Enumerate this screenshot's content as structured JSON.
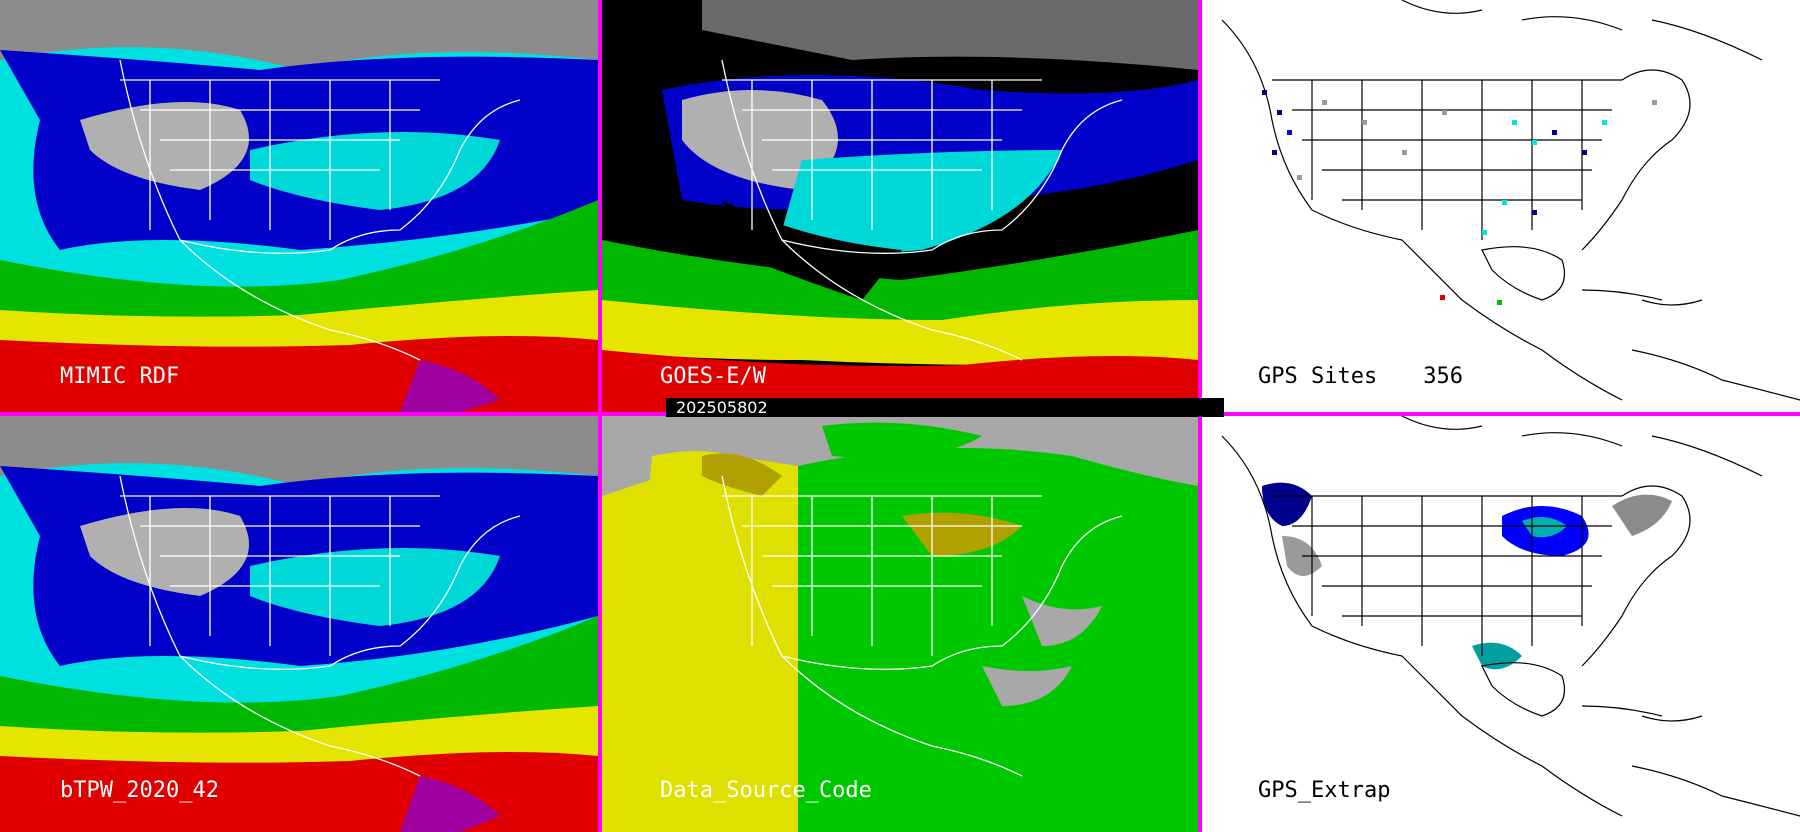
{
  "panels": {
    "mimic": {
      "label": "MIMIC RDF"
    },
    "goes": {
      "label": "GOES-E/W"
    },
    "gps_sites": {
      "label": "GPS Sites",
      "count": "356"
    },
    "btpw": {
      "label": "bTPW_2020_42"
    },
    "data_source": {
      "label": "Data_Source_Code"
    },
    "gps_extrap": {
      "label": "GPS_Extrap"
    }
  },
  "timestamp": "202505802",
  "colors": {
    "divider": "#ff00ff",
    "tpw_scale": [
      "#ffffff",
      "#9a9a9a",
      "#00008f",
      "#0000ff",
      "#00e5e5",
      "#00c000",
      "#e5e500",
      "#e50000",
      "#a000a0"
    ],
    "data_source": {
      "background": "#a8a8a8",
      "west": "#e0e000",
      "east": "#00c800",
      "mixed": "#b0a000"
    }
  }
}
